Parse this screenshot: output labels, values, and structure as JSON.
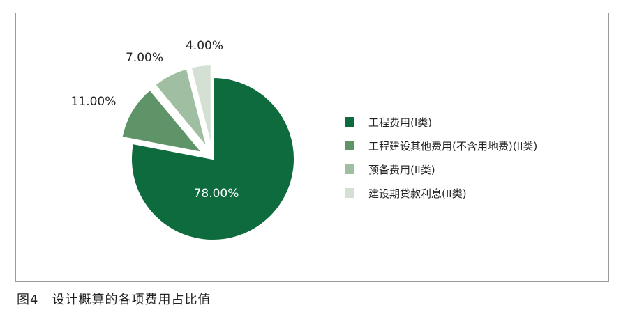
{
  "chart_data": {
    "type": "pie",
    "start_angle": "12 o'clock, clockwise",
    "exploded": [
      "工程建设其他费用(不含用地费)(II类)",
      "预备费用(II类)",
      "建设期贷款利息(II类)"
    ],
    "slices": [
      {
        "label": "工程费用(I类)",
        "value": 78.0,
        "data_label": "78.00%",
        "color": "#0e6b3e"
      },
      {
        "label": "工程建设其他费用(不含用地费)(II类)",
        "value": 11.0,
        "data_label": "11.00%",
        "color": "#5f9468"
      },
      {
        "label": "预备费用(II类)",
        "value": 7.0,
        "data_label": "7.00%",
        "color": "#a0bfa2"
      },
      {
        "label": "建设期贷款利息(II类)",
        "value": 4.0,
        "data_label": "4.00%",
        "color": "#d3e0d3"
      }
    ],
    "legend": {
      "placement": "right",
      "entries": [
        "工程费用(I类)",
        "工程建设其他费用(不含用地费)(II类)",
        "预备费用(II类)",
        "建设期贷款利息(II类)"
      ]
    }
  },
  "caption": "图4　设计概算的各项费用占比值"
}
